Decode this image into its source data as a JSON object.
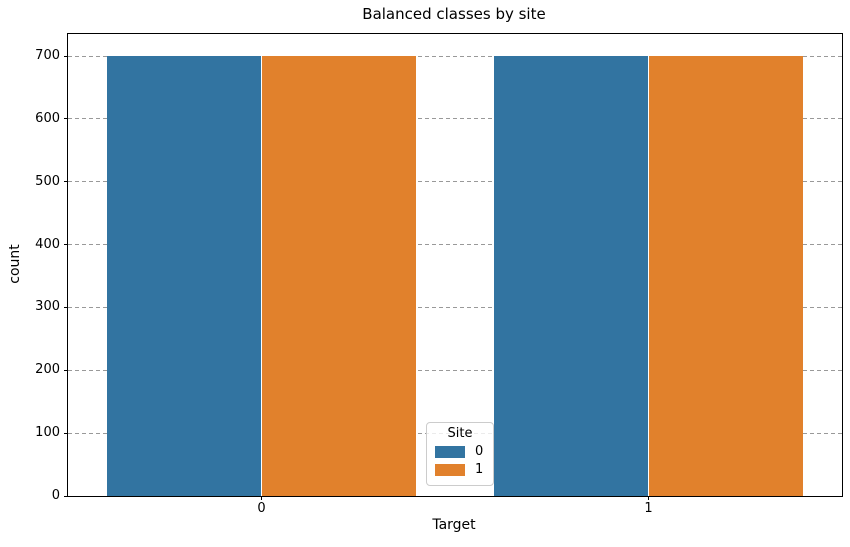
{
  "figure": {
    "title": "Balanced classes by site"
  },
  "chart_data": {
    "type": "bar",
    "title": "Balanced classes by site",
    "xlabel": "Target",
    "ylabel": "count",
    "categories": [
      "0",
      "1"
    ],
    "series": [
      {
        "name": "0",
        "color": "#3274a1",
        "values": [
          700,
          700
        ]
      },
      {
        "name": "1",
        "color": "#e1812c",
        "values": [
          700,
          700
        ]
      }
    ],
    "ylim": [
      0,
      735
    ],
    "yticks": [
      0,
      100,
      200,
      300,
      400,
      500,
      600,
      700
    ],
    "grid": "horizontal-dashed",
    "legend": {
      "title": "Site",
      "entries": [
        "0",
        "1"
      ],
      "position": "lower-center"
    }
  },
  "colors": {
    "series_blue": "#3274a1",
    "series_orange": "#e1812c",
    "grid": "#999999",
    "spine": "#000000",
    "legend_border": "#cccccc",
    "background": "#ffffff"
  }
}
